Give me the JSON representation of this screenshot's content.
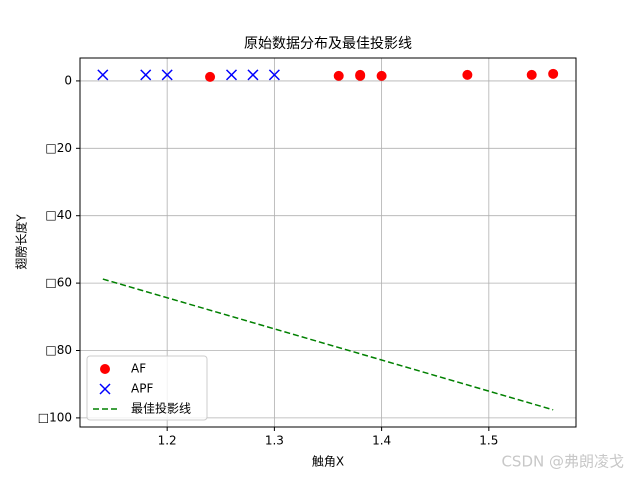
{
  "chart_data": {
    "type": "scatter",
    "title": "原始数据分布及最佳投影线",
    "x_label": "触角X",
    "y_label": "翅膀长度Y",
    "xlim": [
      1.1187,
      1.5813
    ],
    "ylim": [
      -102.7,
      6.8
    ],
    "xticks": [
      1.2,
      1.3,
      1.4,
      1.5
    ],
    "yticks": [
      0,
      {
        "value": -20,
        "label": "□20"
      },
      {
        "value": -40,
        "label": "□40"
      },
      {
        "value": -60,
        "label": "□60"
      },
      {
        "value": -80,
        "label": "□80"
      },
      {
        "value": -100,
        "label": "□100"
      }
    ],
    "grid": true,
    "legend": "lower left",
    "series": [
      {
        "name": "AF",
        "color": "#ff0000",
        "marker": "o",
        "x": [
          1.24,
          1.36,
          1.38,
          1.38,
          1.4,
          1.48,
          1.54,
          1.56
        ],
        "values": [
          1.2,
          1.5,
          1.8,
          1.5,
          1.5,
          1.8,
          1.8,
          2.1
        ]
      },
      {
        "name": "APF",
        "color": "#0000ff",
        "marker": "x",
        "x": [
          1.14,
          1.18,
          1.2,
          1.26,
          1.28,
          1.3
        ],
        "values": [
          1.8,
          1.8,
          1.8,
          1.8,
          1.8,
          1.8
        ]
      },
      {
        "name": "最佳投影线",
        "color": "#008000",
        "linestyle": "--",
        "x": [
          1.14,
          1.56
        ],
        "values": [
          -58.8,
          -97.6
        ]
      }
    ],
    "watermark": "CSDN @弗朗凌戈"
  }
}
